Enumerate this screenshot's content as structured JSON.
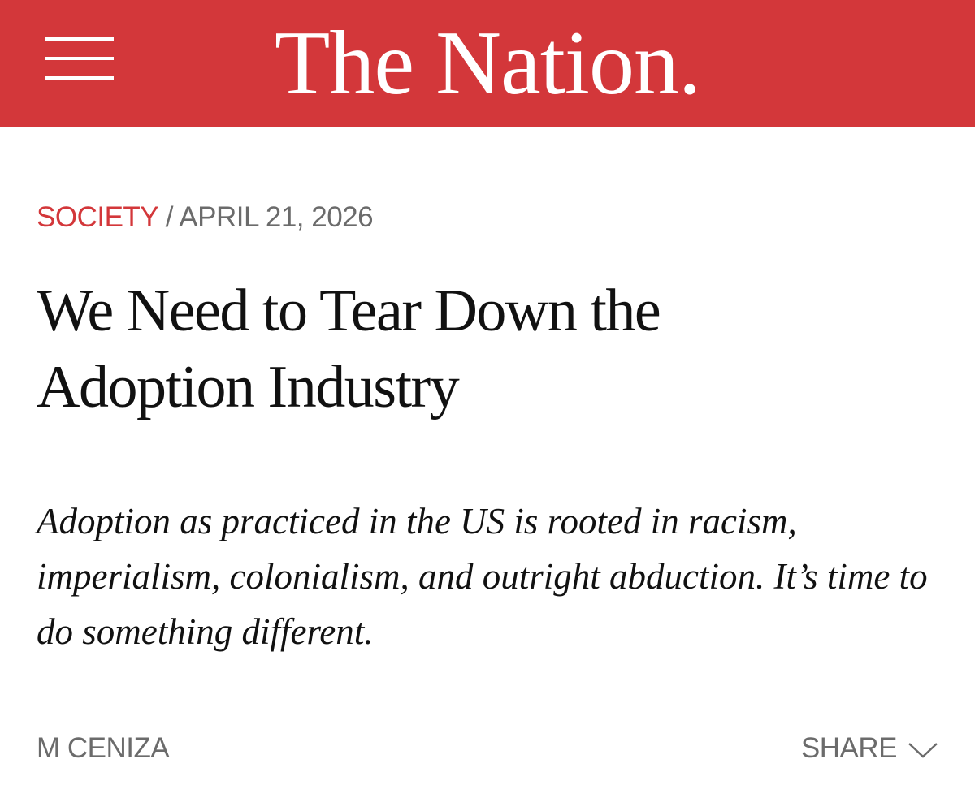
{
  "header": {
    "logo": "The Nation."
  },
  "article": {
    "section": "SOCIETY",
    "separator": "/",
    "date": "APRIL 21, 2026",
    "title": "We Need to Tear Down the Adoption Industry",
    "dek": "Adoption as practiced in the US is rooted in racism, imperialism, colonialism, and outright abduction. It’s time to do something different.",
    "author": "M CENIZA",
    "share": "SHARE"
  }
}
